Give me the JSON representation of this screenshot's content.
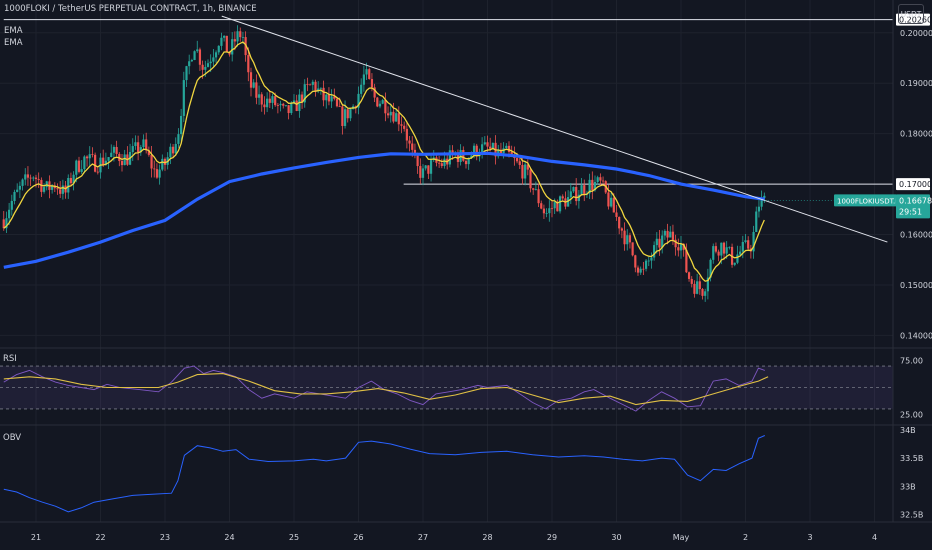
{
  "header": {
    "title": "1000FLOKI / TetherUS PERPETUAL CONTRACT, 1h, BINANCE",
    "ema1": "EMA",
    "ema2": "EMA",
    "currency_button": "USDT"
  },
  "colors": {
    "background": "#131722",
    "up": "#26a69a",
    "down": "#ef5350",
    "ema_fast": "#f0d63f",
    "ema_slow": "#2962ff",
    "rsi": "#7e57c2",
    "rsi_ma": "#e0c045",
    "obv": "#2962ff",
    "grid": "#1e222d",
    "text": "#d1d4dc",
    "level_line": "#e0e3eb"
  },
  "chart_data": [
    {
      "type": "candlestick",
      "title": "1000FLOKI / TetherUS PERPETUAL CONTRACT, 1h, BINANCE",
      "ylim": [
        0.1375,
        0.2065
      ],
      "y_ticks": [
        "0.20000",
        "0.19000",
        "0.18000",
        "0.16000",
        "0.15000",
        "0.14000"
      ],
      "x_ticks": [
        "21",
        "22",
        "23",
        "24",
        "25",
        "26",
        "27",
        "28",
        "29",
        "30",
        "May",
        "2",
        "3",
        "4"
      ],
      "x_range_days": [
        20.5,
        24.75
      ],
      "close_path": [
        [
          20.5,
          0.163
        ],
        [
          20.6,
          0.166
        ],
        [
          20.8,
          0.17
        ],
        [
          20.95,
          0.172
        ],
        [
          21.15,
          0.169
        ],
        [
          21.3,
          0.17
        ],
        [
          21.45,
          0.168
        ],
        [
          21.6,
          0.173
        ],
        [
          21.75,
          0.175
        ],
        [
          21.95,
          0.174
        ],
        [
          22.2,
          0.176
        ],
        [
          22.4,
          0.175
        ],
        [
          22.65,
          0.178
        ],
        [
          22.85,
          0.172
        ],
        [
          23.0,
          0.174
        ],
        [
          23.2,
          0.18
        ],
        [
          23.3,
          0.19
        ],
        [
          23.45,
          0.198
        ],
        [
          23.6,
          0.193
        ],
        [
          23.7,
          0.195
        ],
        [
          23.85,
          0.199
        ],
        [
          24.0,
          0.196
        ],
        [
          24.1,
          0.199
        ],
        [
          24.2,
          0.2
        ],
        [
          24.3,
          0.19
        ],
        [
          24.45,
          0.187
        ],
        [
          24.7,
          0.186
        ],
        [
          24.85,
          0.184
        ],
        [
          25.0,
          0.185
        ],
        [
          25.15,
          0.188
        ],
        [
          25.3,
          0.19
        ],
        [
          25.45,
          0.187
        ],
        [
          25.6,
          0.186
        ],
        [
          25.75,
          0.183
        ],
        [
          25.9,
          0.185
        ],
        [
          26.0,
          0.188
        ],
        [
          26.1,
          0.192
        ],
        [
          26.25,
          0.187
        ],
        [
          26.4,
          0.186
        ],
        [
          26.55,
          0.184
        ],
        [
          26.7,
          0.182
        ],
        [
          26.8,
          0.177
        ],
        [
          26.9,
          0.173
        ],
        [
          27.0,
          0.172
        ],
        [
          27.15,
          0.174
        ],
        [
          27.3,
          0.174
        ],
        [
          27.5,
          0.176
        ],
        [
          27.65,
          0.175
        ],
        [
          27.85,
          0.177
        ],
        [
          28.0,
          0.177
        ],
        [
          28.15,
          0.176
        ],
        [
          28.3,
          0.176
        ],
        [
          28.45,
          0.174
        ],
        [
          28.6,
          0.172
        ],
        [
          28.75,
          0.168
        ],
        [
          28.9,
          0.164
        ],
        [
          29.05,
          0.166
        ],
        [
          29.25,
          0.167
        ],
        [
          29.45,
          0.169
        ],
        [
          29.6,
          0.17
        ],
        [
          29.75,
          0.17
        ],
        [
          29.9,
          0.166
        ],
        [
          30.05,
          0.162
        ],
        [
          30.25,
          0.156
        ],
        [
          30.4,
          0.152
        ],
        [
          30.55,
          0.156
        ],
        [
          30.7,
          0.159
        ],
        [
          30.85,
          0.16
        ],
        [
          31.0,
          0.158
        ],
        [
          31.1,
          0.152
        ],
        [
          31.2,
          0.15
        ],
        [
          31.35,
          0.149
        ],
        [
          31.5,
          0.157
        ],
        [
          31.65,
          0.158
        ],
        [
          31.8,
          0.155
        ],
        [
          31.95,
          0.157
        ],
        [
          32.1,
          0.158
        ],
        [
          32.2,
          0.166
        ],
        [
          32.3,
          0.1668
        ]
      ],
      "ema_fast_label": "EMA",
      "ema_slow_label": "EMA",
      "ema_slow_path": [
        [
          20.5,
          0.1535
        ],
        [
          21.0,
          0.1547
        ],
        [
          21.5,
          0.1565
        ],
        [
          22.0,
          0.1585
        ],
        [
          22.5,
          0.1608
        ],
        [
          23.0,
          0.1628
        ],
        [
          23.5,
          0.167
        ],
        [
          24.0,
          0.1705
        ],
        [
          24.5,
          0.172
        ],
        [
          25.0,
          0.1732
        ],
        [
          25.5,
          0.1743
        ],
        [
          26.0,
          0.1753
        ],
        [
          26.5,
          0.176
        ],
        [
          27.0,
          0.1759
        ],
        [
          27.5,
          0.176
        ],
        [
          28.0,
          0.1761
        ],
        [
          28.5,
          0.1755
        ],
        [
          29.0,
          0.1745
        ],
        [
          29.5,
          0.1738
        ],
        [
          30.0,
          0.173
        ],
        [
          30.5,
          0.1717
        ],
        [
          31.0,
          0.17
        ],
        [
          31.5,
          0.1688
        ],
        [
          32.0,
          0.1675
        ],
        [
          32.3,
          0.167
        ]
      ],
      "trendline": {
        "from": [
          23.88,
          0.2033
        ],
        "to": [
          34.2,
          0.1585
        ]
      },
      "horizontal_levels": [
        {
          "value": 0.2026,
          "label": "0.20260",
          "from_day": 20.5
        },
        {
          "value": 0.17,
          "label": "0.17000",
          "from_day": 26.7
        }
      ],
      "last_price": {
        "value": 0.16678,
        "symbol": "1000FLOKIUSDT.P",
        "price_label": "0.16678",
        "countdown": "29:51"
      }
    },
    {
      "type": "line",
      "title": "RSI",
      "ylim": [
        15,
        85
      ],
      "y_ticks": [
        "75.00",
        "25.00"
      ],
      "bands": [
        70,
        50,
        30
      ],
      "series": [
        {
          "path": [
            [
              20.5,
              55
            ],
            [
              20.7,
              62
            ],
            [
              20.9,
              66
            ],
            [
              21.1,
              60
            ],
            [
              21.3,
              55
            ],
            [
              21.5,
              52
            ],
            [
              21.7,
              50
            ],
            [
              21.9,
              48
            ],
            [
              22.1,
              53
            ],
            [
              22.3,
              50
            ],
            [
              22.6,
              48
            ],
            [
              22.9,
              46
            ],
            [
              23.1,
              55
            ],
            [
              23.3,
              68
            ],
            [
              23.45,
              70
            ],
            [
              23.6,
              63
            ],
            [
              23.75,
              66
            ],
            [
              23.9,
              64
            ],
            [
              24.1,
              60
            ],
            [
              24.3,
              48
            ],
            [
              24.5,
              40
            ],
            [
              24.7,
              44
            ],
            [
              25.0,
              40
            ],
            [
              25.2,
              46
            ],
            [
              25.4,
              44
            ],
            [
              25.6,
              42
            ],
            [
              25.8,
              40
            ],
            [
              26.0,
              50
            ],
            [
              26.2,
              56
            ],
            [
              26.4,
              48
            ],
            [
              26.6,
              44
            ],
            [
              26.8,
              38
            ],
            [
              27.0,
              34
            ],
            [
              27.2,
              44
            ],
            [
              27.4,
              46
            ],
            [
              27.6,
              48
            ],
            [
              27.85,
              52
            ],
            [
              28.0,
              50
            ],
            [
              28.3,
              52
            ],
            [
              28.5,
              44
            ],
            [
              28.7,
              36
            ],
            [
              28.9,
              30
            ],
            [
              29.1,
              38
            ],
            [
              29.3,
              40
            ],
            [
              29.5,
              46
            ],
            [
              29.65,
              48
            ],
            [
              29.9,
              40
            ],
            [
              30.1,
              34
            ],
            [
              30.3,
              28
            ],
            [
              30.5,
              38
            ],
            [
              30.7,
              46
            ],
            [
              30.9,
              40
            ],
            [
              31.1,
              32
            ],
            [
              31.3,
              33
            ],
            [
              31.5,
              56
            ],
            [
              31.7,
              58
            ],
            [
              31.9,
              52
            ],
            [
              32.1,
              56
            ],
            [
              32.2,
              68
            ],
            [
              32.3,
              66
            ]
          ]
        },
        {
          "path": [
            [
              20.5,
              58
            ],
            [
              20.9,
              60
            ],
            [
              21.3,
              58
            ],
            [
              21.7,
              53
            ],
            [
              22.1,
              50
            ],
            [
              22.5,
              50
            ],
            [
              22.9,
              50
            ],
            [
              23.2,
              55
            ],
            [
              23.5,
              62
            ],
            [
              23.9,
              63
            ],
            [
              24.3,
              56
            ],
            [
              24.7,
              47
            ],
            [
              25.1,
              44
            ],
            [
              25.5,
              44
            ],
            [
              25.9,
              46
            ],
            [
              26.3,
              49
            ],
            [
              26.7,
              45
            ],
            [
              27.1,
              39
            ],
            [
              27.5,
              43
            ],
            [
              27.9,
              49
            ],
            [
              28.3,
              50
            ],
            [
              28.7,
              43
            ],
            [
              29.1,
              36
            ],
            [
              29.5,
              40
            ],
            [
              29.9,
              42
            ],
            [
              30.3,
              34
            ],
            [
              30.7,
              38
            ],
            [
              31.1,
              37
            ],
            [
              31.5,
              44
            ],
            [
              31.9,
              51
            ],
            [
              32.2,
              56
            ],
            [
              32.35,
              60
            ]
          ]
        }
      ]
    },
    {
      "type": "line",
      "title": "OBV",
      "ylim": [
        32.37,
        34.05
      ],
      "y_ticks": [
        "34B",
        "33.5B",
        "33B",
        "32.5B"
      ],
      "series": [
        {
          "path": [
            [
              20.5,
              32.95
            ],
            [
              20.7,
              32.9
            ],
            [
              20.9,
              32.8
            ],
            [
              21.1,
              32.72
            ],
            [
              21.3,
              32.65
            ],
            [
              21.5,
              32.55
            ],
            [
              21.7,
              32.62
            ],
            [
              21.9,
              32.72
            ],
            [
              22.2,
              32.78
            ],
            [
              22.5,
              32.84
            ],
            [
              22.8,
              32.86
            ],
            [
              23.1,
              32.88
            ],
            [
              23.2,
              33.1
            ],
            [
              23.3,
              33.55
            ],
            [
              23.5,
              33.72
            ],
            [
              23.7,
              33.68
            ],
            [
              23.9,
              33.62
            ],
            [
              24.1,
              33.65
            ],
            [
              24.3,
              33.48
            ],
            [
              24.6,
              33.44
            ],
            [
              25.0,
              33.45
            ],
            [
              25.3,
              33.48
            ],
            [
              25.5,
              33.45
            ],
            [
              25.8,
              33.5
            ],
            [
              26.0,
              33.78
            ],
            [
              26.2,
              33.8
            ],
            [
              26.5,
              33.75
            ],
            [
              26.8,
              33.66
            ],
            [
              27.1,
              33.58
            ],
            [
              27.5,
              33.56
            ],
            [
              27.9,
              33.6
            ],
            [
              28.3,
              33.62
            ],
            [
              28.7,
              33.56
            ],
            [
              29.1,
              33.52
            ],
            [
              29.5,
              33.54
            ],
            [
              29.8,
              33.52
            ],
            [
              30.1,
              33.48
            ],
            [
              30.4,
              33.45
            ],
            [
              30.7,
              33.5
            ],
            [
              30.9,
              33.48
            ],
            [
              31.1,
              33.2
            ],
            [
              31.3,
              33.1
            ],
            [
              31.5,
              33.3
            ],
            [
              31.7,
              33.28
            ],
            [
              31.9,
              33.4
            ],
            [
              32.1,
              33.5
            ],
            [
              32.2,
              33.85
            ],
            [
              32.3,
              33.9
            ]
          ]
        }
      ]
    }
  ]
}
